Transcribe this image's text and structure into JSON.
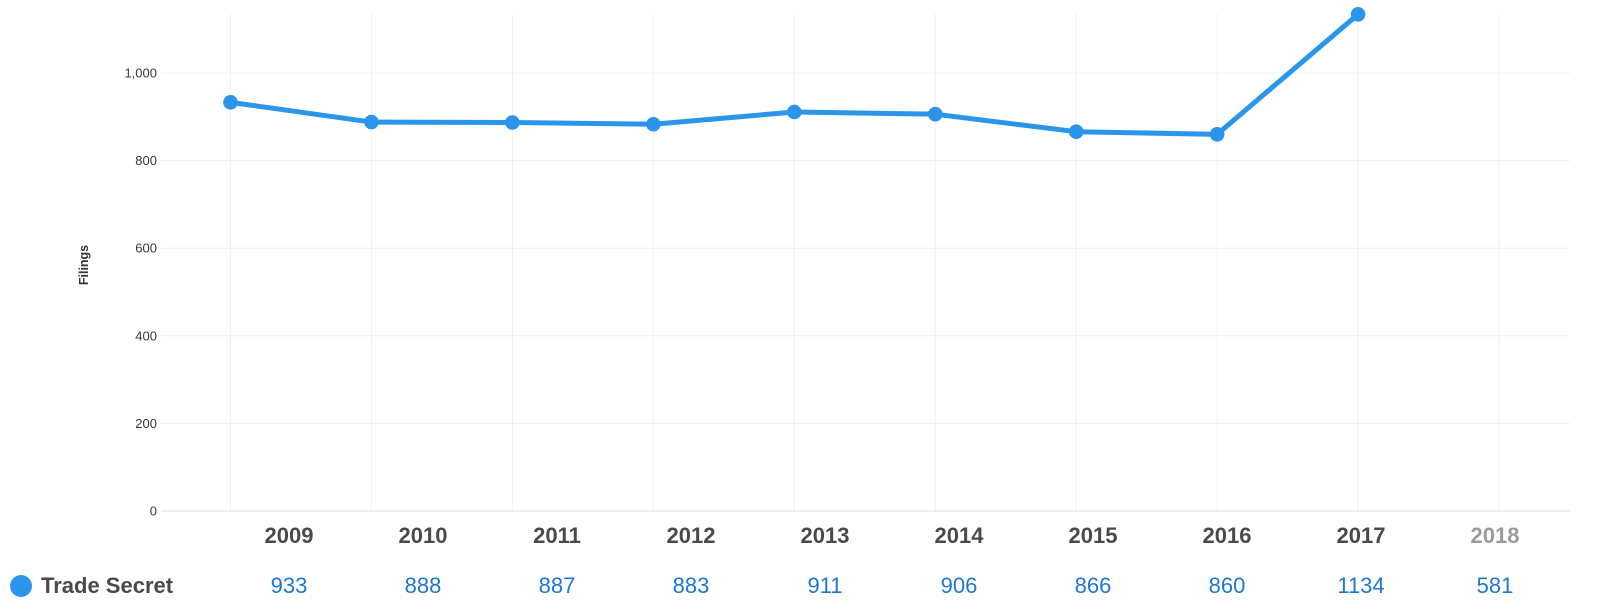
{
  "chart_data": {
    "type": "line",
    "ylabel": "Filings",
    "categories": [
      "2009",
      "2010",
      "2011",
      "2012",
      "2013",
      "2014",
      "2015",
      "2016",
      "2017",
      "2018"
    ],
    "series": [
      {
        "name": "Trade Secret",
        "values": [
          933,
          888,
          887,
          883,
          911,
          906,
          866,
          860,
          1134,
          581
        ],
        "plotted": [
          true,
          true,
          true,
          true,
          true,
          true,
          true,
          true,
          true,
          false
        ],
        "color": "#2b95ec"
      }
    ],
    "ylim": [
      0,
      1170
    ],
    "yticks": [
      0,
      200,
      400,
      600,
      800,
      1000
    ],
    "ytick_labels": [
      "0",
      "200",
      "400",
      "600",
      "800",
      "1,000"
    ],
    "grid": true,
    "legend_position": "bottom-left",
    "partial_category": "2018"
  },
  "legend": {
    "label": "Trade Secret",
    "marker_color": "#2b95ec"
  },
  "colors": {
    "line": "#2b95ec",
    "value_link": "#1d78d2",
    "year_label": "#4a4a4a",
    "year_label_muted": "#9b9b9b",
    "grid_line": "#f0f0f0",
    "axis_line": "#dcdcdc",
    "tick_label": "#3a3a3a"
  }
}
